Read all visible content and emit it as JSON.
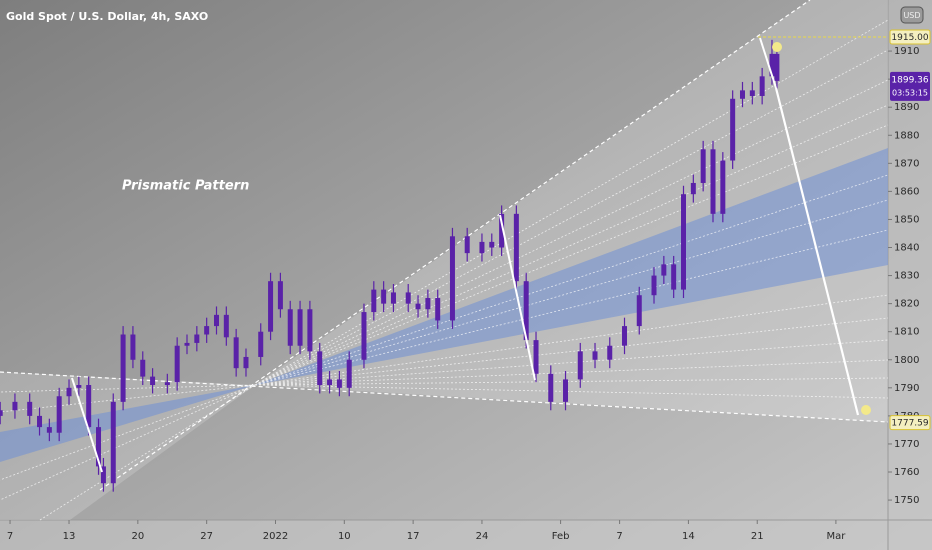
{
  "chart_data": {
    "type": "candlestick",
    "title": "Gold Spot / U.S. Dollar, 4h, SAXO",
    "annotation": "Prismatic Pattern",
    "currency": "USD",
    "color": "#5a22a8",
    "x": [
      -1,
      0.5,
      2,
      3,
      4,
      5,
      6,
      7,
      8,
      9,
      9.5,
      10.5,
      11.5,
      12.5,
      13.5,
      14.5,
      16,
      17,
      18,
      19,
      20,
      21,
      22,
      23,
      24,
      25.5,
      26.5,
      27.5,
      28.5,
      29.5,
      30.5,
      31.5,
      32.5,
      33.5,
      34.5,
      36,
      37,
      38,
      39,
      40.5,
      41.5,
      42.5,
      43.5,
      45,
      46.5,
      48,
      49,
      50,
      51.5,
      52.5,
      53.5,
      55,
      56.5,
      58,
      59.5,
      61,
      62.5,
      64,
      65.5,
      66.5,
      67.5,
      68.5,
      69.5,
      70.5,
      71.5,
      72.5,
      73.5,
      74.5,
      75.5,
      76.5,
      77.5,
      78
    ],
    "open": [
      1780,
      1782,
      1785,
      1780,
      1776,
      1774,
      1787,
      1790,
      1791,
      1776,
      1762,
      1756,
      1785,
      1809,
      1800,
      1794,
      1791,
      1792,
      1805,
      1806,
      1809,
      1812,
      1816,
      1808,
      1797,
      1801,
      1810,
      1828,
      1818,
      1805,
      1818,
      1803,
      1791,
      1793,
      1790,
      1800,
      1817,
      1825,
      1820,
      1824,
      1820,
      1818,
      1822,
      1814,
      1844,
      1838,
      1842,
      1840,
      1852,
      1828,
      1807,
      1795,
      1785,
      1793,
      1803,
      1800,
      1805,
      1812,
      1823,
      1830,
      1834,
      1825,
      1859,
      1863,
      1875,
      1852,
      1871,
      1893,
      1896,
      1894,
      1901,
      1909
    ],
    "high": [
      1785,
      1788,
      1788,
      1783,
      1779,
      1790,
      1793,
      1794,
      1794,
      1779,
      1765,
      1788,
      1812,
      1812,
      1803,
      1797,
      1795,
      1808,
      1809,
      1812,
      1815,
      1819,
      1819,
      1811,
      1804,
      1813,
      1831,
      1831,
      1821,
      1821,
      1821,
      1806,
      1796,
      1796,
      1803,
      1820,
      1828,
      1828,
      1827,
      1827,
      1823,
      1825,
      1825,
      1847,
      1847,
      1845,
      1845,
      1855,
      1855,
      1831,
      1810,
      1798,
      1796,
      1806,
      1806,
      1808,
      1815,
      1826,
      1833,
      1837,
      1837,
      1862,
      1866,
      1878,
      1878,
      1874,
      1896,
      1899,
      1899,
      1904,
      1914,
      1912
    ],
    "low": [
      1777,
      1779,
      1777,
      1773,
      1771,
      1771,
      1784,
      1787,
      1773,
      1759,
      1753,
      1753,
      1782,
      1797,
      1791,
      1788,
      1788,
      1789,
      1802,
      1803,
      1806,
      1809,
      1805,
      1794,
      1794,
      1798,
      1807,
      1815,
      1802,
      1802,
      1800,
      1788,
      1788,
      1787,
      1787,
      1797,
      1814,
      1817,
      1817,
      1817,
      1815,
      1815,
      1811,
      1811,
      1835,
      1835,
      1837,
      1837,
      1825,
      1804,
      1792,
      1782,
      1782,
      1790,
      1797,
      1797,
      1802,
      1809,
      1820,
      1827,
      1822,
      1822,
      1856,
      1860,
      1849,
      1849,
      1868,
      1890,
      1891,
      1891,
      1898,
      1896
    ],
    "close": [
      1782,
      1785,
      1780,
      1776,
      1774,
      1787,
      1790,
      1791,
      1776,
      1762,
      1756,
      1785,
      1809,
      1800,
      1794,
      1791,
      1792,
      1805,
      1806,
      1809,
      1812,
      1816,
      1808,
      1797,
      1801,
      1810,
      1828,
      1818,
      1805,
      1818,
      1803,
      1791,
      1793,
      1790,
      1800,
      1817,
      1825,
      1820,
      1824,
      1820,
      1818,
      1822,
      1814,
      1844,
      1838,
      1842,
      1840,
      1852,
      1828,
      1807,
      1795,
      1785,
      1793,
      1803,
      1800,
      1805,
      1812,
      1823,
      1830,
      1834,
      1825,
      1859,
      1863,
      1875,
      1852,
      1871,
      1893,
      1896,
      1894,
      1901,
      1909,
      1899.36
    ],
    "xlim": [
      -1.02,
      89.3
    ],
    "xticks": [
      {
        "value": 0,
        "label": "7"
      },
      {
        "value": 6,
        "label": "13"
      },
      {
        "value": 13,
        "label": "20"
      },
      {
        "value": 20,
        "label": "27"
      },
      {
        "value": 27,
        "label": "2022"
      },
      {
        "value": 34,
        "label": "10"
      },
      {
        "value": 41,
        "label": "17"
      },
      {
        "value": 48,
        "label": "24"
      },
      {
        "value": 56,
        "label": "Feb"
      },
      {
        "value": 62,
        "label": "7"
      },
      {
        "value": 69,
        "label": "14"
      },
      {
        "value": 76,
        "label": "21"
      },
      {
        "value": 84,
        "label": "Mar"
      }
    ],
    "ylim": [
      1742.9,
      1928.2
    ],
    "yticks": [
      1750,
      1760,
      1770,
      1780,
      1790,
      1800,
      1810,
      1820,
      1830,
      1840,
      1850,
      1860,
      1870,
      1880,
      1890,
      1900,
      1910
    ],
    "price_labels": [
      {
        "value": 1915,
        "label": "1915.00"
      },
      {
        "value": 1777.59,
        "label": "1777.59"
      }
    ],
    "last_price": {
      "value": 1899.36,
      "label": "1899.36",
      "countdown": "03:53:15"
    }
  }
}
